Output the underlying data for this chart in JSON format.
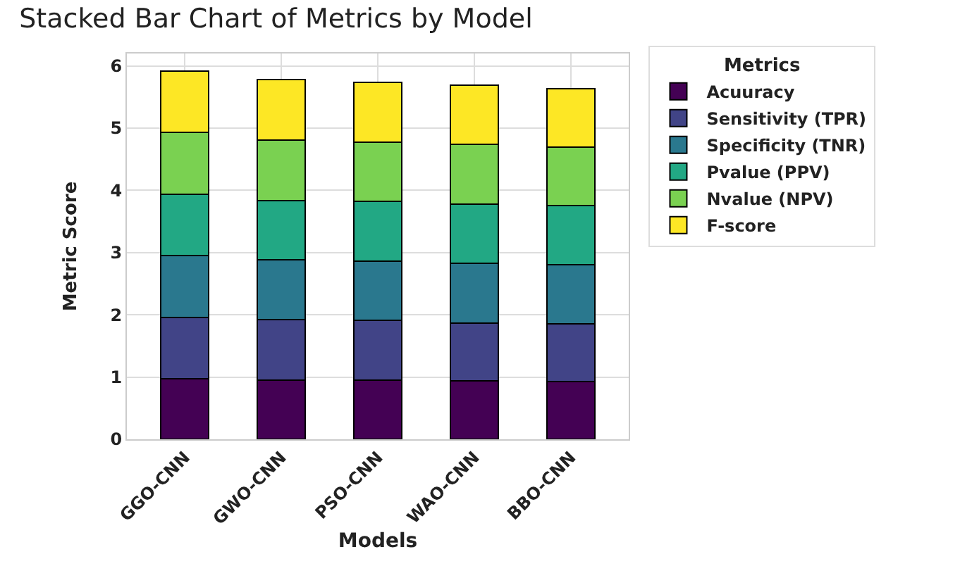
{
  "chart_data": {
    "type": "bar",
    "stacked": true,
    "title": "Stacked Bar Chart of Metrics by Model",
    "xlabel": "Models",
    "ylabel": "Metric Score",
    "legend_title": "Metrics",
    "legend": "top right",
    "grid": true,
    "categories": [
      "GGO-CNN",
      "GWO-CNN",
      "PSO-CNN",
      "WAO-CNN",
      "BBO-CNN"
    ],
    "ylim": [
      0,
      6.2
    ],
    "yticks": [
      0,
      1,
      2,
      3,
      4,
      5,
      6
    ],
    "series": [
      {
        "name": "Acuuracy",
        "color": "#440154",
        "values": [
          0.97,
          0.95,
          0.95,
          0.94,
          0.93
        ]
      },
      {
        "name": "Sensitivity (TPR)",
        "color": "#414487",
        "values": [
          0.99,
          0.97,
          0.96,
          0.93,
          0.92
        ]
      },
      {
        "name": "Specificity (TNR)",
        "color": "#2a788e",
        "values": [
          0.99,
          0.96,
          0.95,
          0.96,
          0.96
        ]
      },
      {
        "name": "Pvalue (PPV)",
        "color": "#22a884",
        "values": [
          0.99,
          0.96,
          0.96,
          0.95,
          0.95
        ]
      },
      {
        "name": "Nvalue (NPV)",
        "color": "#7ad151",
        "values": [
          0.99,
          0.97,
          0.96,
          0.96,
          0.94
        ]
      },
      {
        "name": "F-score",
        "color": "#fde725",
        "values": [
          0.99,
          0.97,
          0.96,
          0.95,
          0.94
        ]
      }
    ]
  }
}
